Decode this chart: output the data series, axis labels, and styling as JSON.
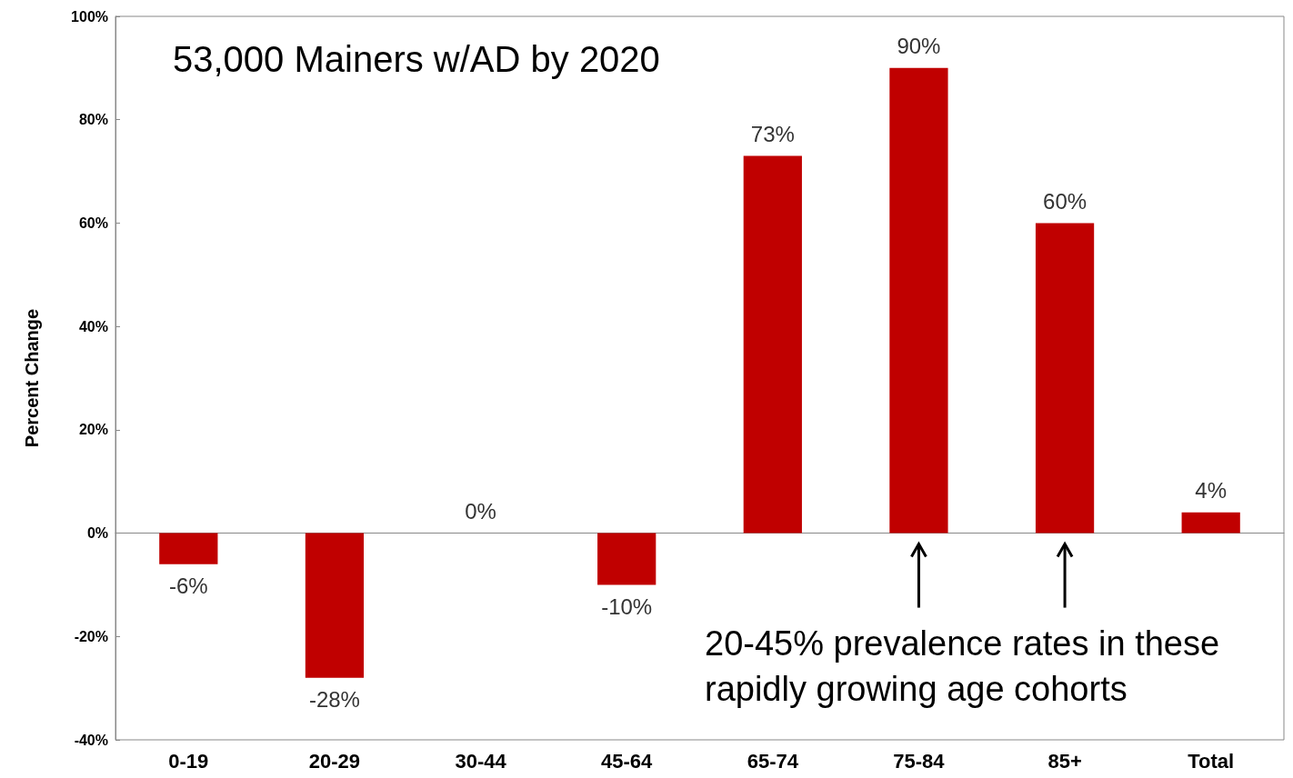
{
  "chart_data": {
    "type": "bar",
    "ylabel": "Percent Change",
    "categories": [
      "0-19",
      "20-29",
      "30-44",
      "45-64",
      "65-74",
      "75-84",
      "85+",
      "Total"
    ],
    "values": [
      -6,
      -28,
      0,
      -10,
      73,
      90,
      60,
      4
    ],
    "value_labels": [
      "-6%",
      "-28%",
      "0%",
      "-10%",
      "73%",
      "90%",
      "60%",
      "4%"
    ],
    "color": "#c00000",
    "ylim": [
      -40,
      100
    ],
    "yticks": [
      {
        "value": -40,
        "label": "-40%"
      },
      {
        "value": -20,
        "label": "-20%"
      },
      {
        "value": 0,
        "label": "0%"
      },
      {
        "value": 20,
        "label": "20%"
      },
      {
        "value": 40,
        "label": "40%"
      },
      {
        "value": 60,
        "label": "60%"
      },
      {
        "value": 80,
        "label": "80%"
      },
      {
        "value": 100,
        "label": "100%"
      }
    ],
    "annotations": [
      "53,000 Mainers w/AD by 2020",
      "20-45% prevalence rates in these rapidly growing age cohorts"
    ]
  }
}
